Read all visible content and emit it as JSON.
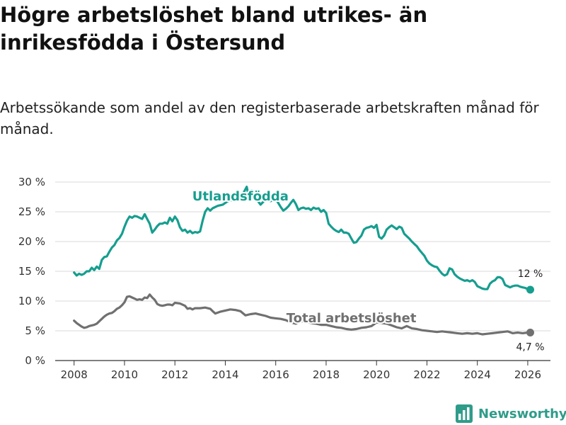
{
  "title": "Högre arbetslöshet bland utrikes- än inrikesfödda i Östersund",
  "subtitle": "Arbetssökande som andel av den registerbaserade arbetskraften månad för månad.",
  "brand": "Newsworthy",
  "colors": {
    "utlandsfodda": "#169e8f",
    "total": "#707070",
    "grid": "#d8d8d8",
    "axis": "#333333"
  },
  "chart_data": {
    "type": "line",
    "title": "Högre arbetslöshet bland utrikes- än inrikesfödda i Östersund",
    "xlabel": "",
    "ylabel": "",
    "xlim": [
      2007.25,
      2026.9
    ],
    "ylim": [
      0,
      30
    ],
    "xticks": [
      2008,
      2010,
      2012,
      2014,
      2016,
      2018,
      2020,
      2022,
      2024,
      2026
    ],
    "xtick_labels": [
      "2008",
      "2010",
      "2012",
      "2014",
      "2016",
      "2018",
      "2020",
      "2022",
      "2024",
      "2026"
    ],
    "yticks": [
      0,
      5,
      10,
      15,
      20,
      25,
      30
    ],
    "ytick_labels": [
      "0 %",
      "5 %",
      "10 %",
      "15 %",
      "20 %",
      "25 %",
      "30 %"
    ],
    "grid": true,
    "series": [
      {
        "name": "Utlandsfödda",
        "color": "#169e8f",
        "end_label": "12 %",
        "x": [
          2008.0,
          2008.1,
          2008.2,
          2008.3,
          2008.4,
          2008.5,
          2008.6,
          2008.7,
          2008.8,
          2008.9,
          2009.0,
          2009.1,
          2009.2,
          2009.3,
          2009.4,
          2009.5,
          2009.6,
          2009.7,
          2009.8,
          2009.9,
          2010.0,
          2010.1,
          2010.2,
          2010.3,
          2010.4,
          2010.5,
          2010.6,
          2010.7,
          2010.8,
          2010.9,
          2011.0,
          2011.1,
          2011.2,
          2011.3,
          2011.4,
          2011.5,
          2011.6,
          2011.7,
          2011.8,
          2011.9,
          2012.0,
          2012.1,
          2012.2,
          2012.3,
          2012.4,
          2012.5,
          2012.6,
          2012.7,
          2012.8,
          2012.9,
          2013.0,
          2013.1,
          2013.2,
          2013.3,
          2013.4,
          2013.5,
          2013.7,
          2013.9,
          2014.1,
          2014.3,
          2014.5,
          2014.7,
          2014.85,
          2014.95,
          2015.05,
          2015.2,
          2015.4,
          2015.6,
          2015.8,
          2016.0,
          2016.2,
          2016.3,
          2016.4,
          2016.5,
          2016.6,
          2016.7,
          2016.8,
          2016.9,
          2017.0,
          2017.1,
          2017.2,
          2017.3,
          2017.4,
          2017.5,
          2017.6,
          2017.7,
          2017.8,
          2017.9,
          2018.0,
          2018.1,
          2018.2,
          2018.3,
          2018.4,
          2018.5,
          2018.6,
          2018.7,
          2018.8,
          2018.9,
          2019.0,
          2019.1,
          2019.2,
          2019.3,
          2019.4,
          2019.5,
          2019.6,
          2019.7,
          2019.8,
          2019.9,
          2020.0,
          2020.1,
          2020.2,
          2020.3,
          2020.4,
          2020.5,
          2020.6,
          2020.7,
          2020.8,
          2020.9,
          2021.0,
          2021.1,
          2021.2,
          2021.3,
          2021.4,
          2021.5,
          2021.6,
          2021.7,
          2021.8,
          2021.9,
          2022.0,
          2022.1,
          2022.2,
          2022.3,
          2022.4,
          2022.5,
          2022.6,
          2022.7,
          2022.8,
          2022.9,
          2023.0,
          2023.1,
          2023.2,
          2023.3,
          2023.4,
          2023.5,
          2023.6,
          2023.7,
          2023.8,
          2023.9,
          2024.0,
          2024.1,
          2024.2,
          2024.3,
          2024.4,
          2024.5,
          2024.6,
          2024.7,
          2024.8,
          2024.9,
          2025.0,
          2025.1,
          2025.2,
          2025.3,
          2025.4,
          2025.5,
          2025.6,
          2025.7,
          2025.8,
          2025.9,
          2026.0,
          2026.1
        ],
        "values": [
          14.8,
          14.3,
          14.6,
          14.4,
          14.6,
          15.0,
          15.0,
          15.6,
          15.2,
          15.8,
          15.4,
          16.9,
          17.4,
          17.5,
          18.3,
          19.0,
          19.4,
          20.2,
          20.6,
          21.3,
          22.5,
          23.5,
          24.2,
          24.0,
          24.3,
          24.2,
          24.0,
          23.8,
          24.6,
          23.8,
          23.0,
          21.5,
          22.0,
          22.6,
          23.0,
          23.0,
          23.2,
          23.0,
          24.0,
          23.4,
          24.2,
          23.6,
          22.4,
          21.8,
          22.0,
          21.5,
          21.8,
          21.4,
          21.6,
          21.5,
          21.7,
          23.5,
          25.0,
          25.6,
          25.2,
          25.6,
          26.0,
          26.2,
          26.8,
          27.0,
          27.4,
          28.0,
          29.2,
          27.2,
          28.6,
          27.3,
          26.2,
          27.1,
          26.8,
          27.2,
          25.8,
          25.2,
          25.5,
          25.9,
          26.5,
          27.0,
          26.3,
          25.3,
          25.6,
          25.7,
          25.5,
          25.6,
          25.3,
          25.7,
          25.5,
          25.6,
          25.0,
          25.3,
          24.8,
          23.0,
          22.5,
          22.1,
          21.8,
          21.6,
          22.0,
          21.5,
          21.5,
          21.3,
          20.5,
          19.8,
          19.9,
          20.5,
          21.0,
          22.0,
          22.3,
          22.4,
          22.6,
          22.3,
          22.8,
          20.8,
          20.5,
          21.0,
          22.0,
          22.4,
          22.7,
          22.4,
          22.1,
          22.5,
          22.3,
          21.3,
          20.9,
          20.5,
          20.0,
          19.6,
          19.2,
          18.6,
          18.1,
          17.6,
          16.8,
          16.3,
          16.0,
          15.8,
          15.7,
          15.1,
          14.6,
          14.3,
          14.5,
          15.5,
          15.3,
          14.5,
          14.1,
          13.8,
          13.6,
          13.4,
          13.5,
          13.3,
          13.5,
          13.2,
          12.5,
          12.3,
          12.1,
          12.0,
          12.0,
          12.9,
          13.3,
          13.5,
          14.0,
          14.0,
          13.7,
          12.7,
          12.5,
          12.3,
          12.5,
          12.6,
          12.6,
          12.4,
          12.3,
          12.2,
          12.0,
          11.9
        ]
      },
      {
        "name": "Total arbetslöshet",
        "color": "#707070",
        "end_label": "4,7 %",
        "x": [
          2008.0,
          2008.1,
          2008.2,
          2008.3,
          2008.4,
          2008.5,
          2008.6,
          2008.7,
          2008.8,
          2008.9,
          2009.0,
          2009.1,
          2009.2,
          2009.3,
          2009.4,
          2009.5,
          2009.6,
          2009.7,
          2009.8,
          2009.9,
          2010.0,
          2010.1,
          2010.2,
          2010.3,
          2010.4,
          2010.5,
          2010.6,
          2010.7,
          2010.8,
          2010.9,
          2011.0,
          2011.1,
          2011.2,
          2011.3,
          2011.4,
          2011.5,
          2011.6,
          2011.7,
          2011.8,
          2011.9,
          2012.0,
          2012.2,
          2012.4,
          2012.5,
          2012.6,
          2012.7,
          2012.8,
          2013.0,
          2013.2,
          2013.4,
          2013.5,
          2013.6,
          2013.8,
          2014.0,
          2014.2,
          2014.4,
          2014.6,
          2014.8,
          2015.0,
          2015.2,
          2015.4,
          2015.6,
          2015.8,
          2016.0,
          2016.2,
          2016.4,
          2016.6,
          2016.8,
          2017.0,
          2017.2,
          2017.4,
          2017.6,
          2017.8,
          2018.0,
          2018.2,
          2018.4,
          2018.6,
          2018.8,
          2019.0,
          2019.2,
          2019.4,
          2019.6,
          2019.8,
          2020.0,
          2020.2,
          2020.4,
          2020.6,
          2020.8,
          2021.0,
          2021.2,
          2021.4,
          2021.6,
          2021.8,
          2022.0,
          2022.2,
          2022.4,
          2022.6,
          2022.8,
          2023.0,
          2023.2,
          2023.4,
          2023.6,
          2023.8,
          2024.0,
          2024.2,
          2024.4,
          2024.6,
          2024.8,
          2025.0,
          2025.2,
          2025.4,
          2025.6,
          2025.8,
          2026.0,
          2026.1
        ],
        "values": [
          6.7,
          6.3,
          6.0,
          5.7,
          5.5,
          5.6,
          5.8,
          5.9,
          6.0,
          6.2,
          6.6,
          7.0,
          7.4,
          7.7,
          7.9,
          8.0,
          8.3,
          8.7,
          8.9,
          9.3,
          9.8,
          10.7,
          10.8,
          10.6,
          10.4,
          10.2,
          10.3,
          10.2,
          10.6,
          10.5,
          11.1,
          10.6,
          10.2,
          9.5,
          9.3,
          9.2,
          9.3,
          9.4,
          9.4,
          9.3,
          9.7,
          9.6,
          9.2,
          8.7,
          8.8,
          8.6,
          8.8,
          8.8,
          8.9,
          8.7,
          8.3,
          7.9,
          8.2,
          8.4,
          8.6,
          8.5,
          8.3,
          7.6,
          7.8,
          7.9,
          7.7,
          7.5,
          7.2,
          7.1,
          7.0,
          6.8,
          6.4,
          6.2,
          6.6,
          6.6,
          6.3,
          6.2,
          6.0,
          6.0,
          5.8,
          5.6,
          5.5,
          5.3,
          5.2,
          5.3,
          5.5,
          5.6,
          5.8,
          6.4,
          6.3,
          6.2,
          5.9,
          5.6,
          5.4,
          5.8,
          5.4,
          5.3,
          5.1,
          5.0,
          4.9,
          4.8,
          4.9,
          4.8,
          4.7,
          4.6,
          4.5,
          4.6,
          4.5,
          4.6,
          4.4,
          4.5,
          4.6,
          4.7,
          4.8,
          4.9,
          4.6,
          4.7,
          4.6,
          4.7,
          4.7
        ]
      }
    ],
    "annotations": [
      {
        "text": "Utlandsfödda",
        "series": "Utlandsfödda",
        "x": 2014.6,
        "y": 26.9
      },
      {
        "text": "Total arbetslöshet",
        "series": "Total arbetslöshet",
        "x": 2019.0,
        "y": 6.4
      }
    ]
  }
}
